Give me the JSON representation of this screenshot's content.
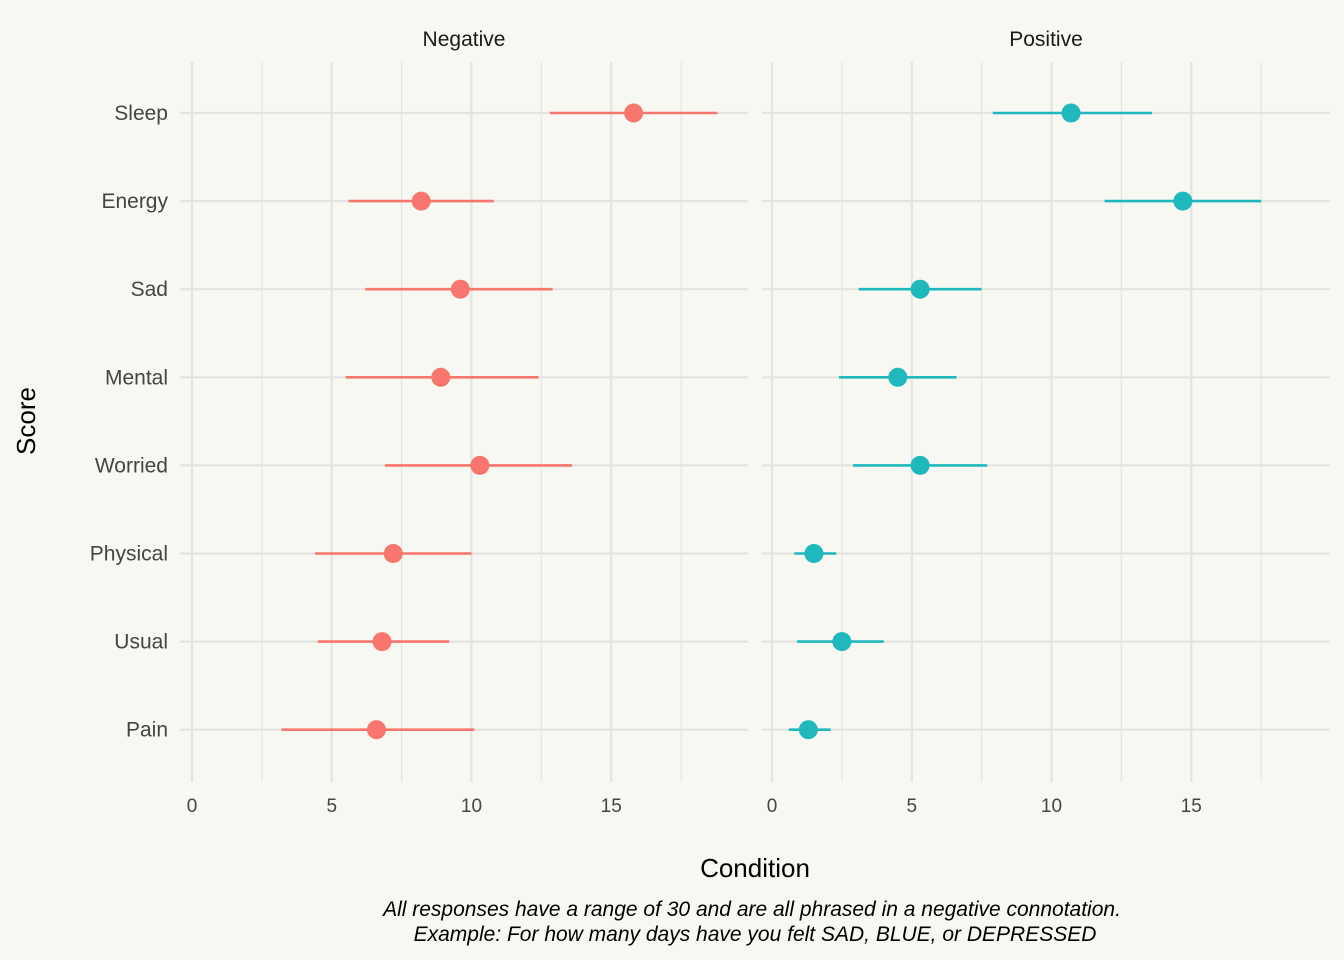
{
  "chart_data": {
    "type": "scatter",
    "subtype": "dot-with-error-bars, faceted",
    "xlabel": "Condition",
    "ylabel": "Score",
    "caption_lines": [
      "All responses have a range of 30 and are all phrased in a negative connotation.",
      "Example: For how many days have you felt SAD, BLUE, or DEPRESSED"
    ],
    "categories": [
      "Sleep",
      "Energy",
      "Sad",
      "Mental",
      "Worried",
      "Physical",
      "Usual",
      "Pain"
    ],
    "xlim": [
      0,
      19.5
    ],
    "x_ticks": [
      0,
      5,
      10,
      15
    ],
    "x_tick_labels": [
      "0",
      "5",
      "10",
      "15"
    ],
    "grid": true,
    "legend": "none",
    "panels": [
      {
        "name": "Negative",
        "color": "#F8766D",
        "points": [
          {
            "category": "Sleep",
            "mean": 15.8,
            "low": 12.8,
            "high": 18.8
          },
          {
            "category": "Energy",
            "mean": 8.2,
            "low": 5.6,
            "high": 10.8
          },
          {
            "category": "Sad",
            "mean": 9.6,
            "low": 6.2,
            "high": 12.9
          },
          {
            "category": "Mental",
            "mean": 8.9,
            "low": 5.5,
            "high": 12.4
          },
          {
            "category": "Worried",
            "mean": 10.3,
            "low": 6.9,
            "high": 13.6
          },
          {
            "category": "Physical",
            "mean": 7.2,
            "low": 4.4,
            "high": 10.0
          },
          {
            "category": "Usual",
            "mean": 6.8,
            "low": 4.5,
            "high": 9.2
          },
          {
            "category": "Pain",
            "mean": 6.6,
            "low": 3.2,
            "high": 10.1
          }
        ]
      },
      {
        "name": "Positive",
        "color": "#1FB8BC",
        "points": [
          {
            "category": "Sleep",
            "mean": 10.7,
            "low": 7.9,
            "high": 13.6
          },
          {
            "category": "Energy",
            "mean": 14.7,
            "low": 11.9,
            "high": 17.5
          },
          {
            "category": "Sad",
            "mean": 5.3,
            "low": 3.1,
            "high": 7.5
          },
          {
            "category": "Mental",
            "mean": 4.5,
            "low": 2.4,
            "high": 6.6
          },
          {
            "category": "Worried",
            "mean": 5.3,
            "low": 2.9,
            "high": 7.7
          },
          {
            "category": "Physical",
            "mean": 1.5,
            "low": 0.8,
            "high": 2.3
          },
          {
            "category": "Usual",
            "mean": 2.5,
            "low": 0.9,
            "high": 4.0
          },
          {
            "category": "Pain",
            "mean": 1.3,
            "low": 0.6,
            "high": 2.1
          }
        ]
      }
    ]
  }
}
